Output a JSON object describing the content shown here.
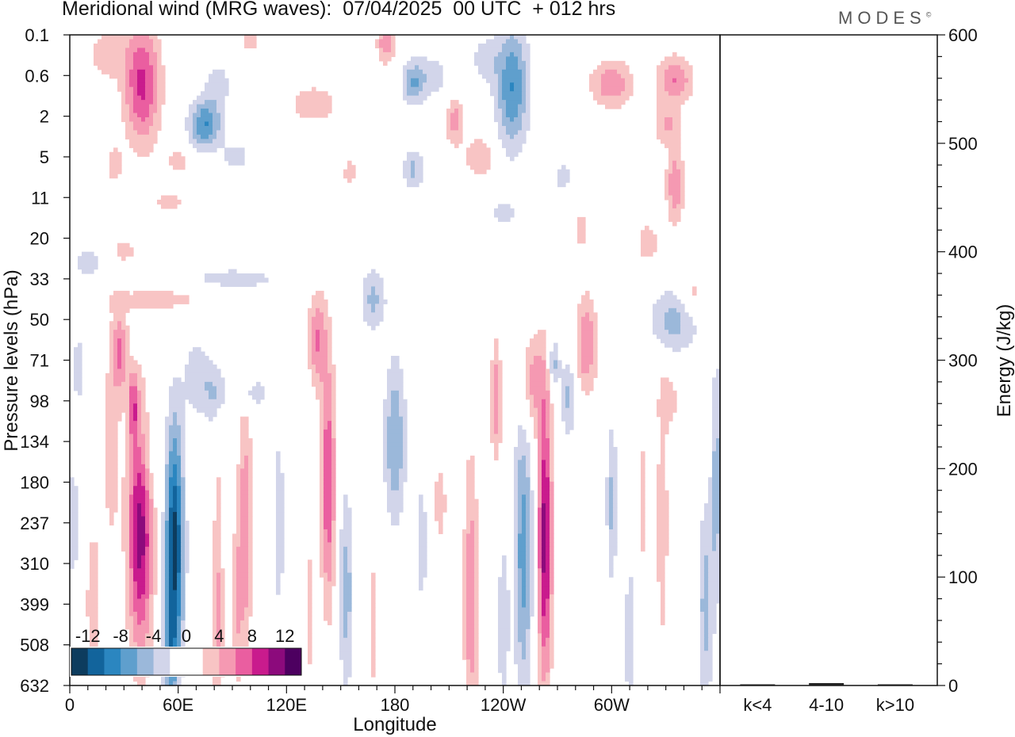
{
  "title": "Meridional wind (MRG waves):  07/04/2025  00 UTC  + 012 hrs",
  "brand": "MODES",
  "brand_mark": "©",
  "chart_data": [
    {
      "type": "heatmap",
      "variable": "Meridional wind (MRG waves)",
      "date": "07/04/2025",
      "time": "00 UTC",
      "forecast": "+ 012 hrs",
      "xlabel": "Longitude",
      "ylabel": "Pressure levels (hPa)",
      "x_ticks": [
        "0",
        "60E",
        "120E",
        "180",
        "120W",
        "60W"
      ],
      "x_tick_values": [
        0,
        60,
        120,
        180,
        240,
        300
      ],
      "xlim": [
        0,
        360
      ],
      "y_ticks": [
        "0.1",
        "0.6",
        "2",
        "5",
        "11",
        "20",
        "33",
        "50",
        "71",
        "98",
        "134",
        "180",
        "237",
        "310",
        "399",
        "508",
        "632"
      ],
      "colorbar": {
        "labels": [
          "-12",
          "-8",
          "-4",
          "0",
          "4",
          "8",
          "12"
        ],
        "label_values": [
          -12,
          -8,
          -4,
          0,
          4,
          8,
          12
        ],
        "bins": [
          {
            "lo": -14,
            "hi": -12,
            "color": "#0d3c5e"
          },
          {
            "lo": -12,
            "hi": -10,
            "color": "#12649c"
          },
          {
            "lo": -10,
            "hi": -8,
            "color": "#2b86c0"
          },
          {
            "lo": -8,
            "hi": -6,
            "color": "#5f9fcd"
          },
          {
            "lo": -6,
            "hi": -4,
            "color": "#9bb8da"
          },
          {
            "lo": -4,
            "hi": -2,
            "color": "#d2d5ea"
          },
          {
            "lo": -2,
            "hi": 0,
            "color": "#ffffff"
          },
          {
            "lo": 0,
            "hi": 2,
            "color": "#ffffff"
          },
          {
            "lo": 2,
            "hi": 4,
            "color": "#f8c4c4"
          },
          {
            "lo": 4,
            "hi": 6,
            "color": "#f599b2"
          },
          {
            "lo": 6,
            "hi": 8,
            "color": "#ea5ea0"
          },
          {
            "lo": 8,
            "hi": 10,
            "color": "#c91b8d"
          },
          {
            "lo": 10,
            "hi": 12,
            "color": "#8c0a7c"
          },
          {
            "lo": 12,
            "hi": 14,
            "color": "#4d0060"
          }
        ]
      },
      "features": [
        {
          "lon": 39,
          "lev": 12.2,
          "v": 11,
          "lw": 7,
          "lh": 3.0
        },
        {
          "lon": 58,
          "lev": 12.6,
          "v": -13,
          "lw": 5,
          "lh": 3.0
        },
        {
          "lon": 55,
          "lev": 15.2,
          "v": -5,
          "lw": 4,
          "lh": 1.2
        },
        {
          "lon": 13,
          "lev": 14,
          "v": 3,
          "lw": 5,
          "lh": 2.5
        },
        {
          "lon": 5,
          "lev": 8.2,
          "v": -4,
          "lw": 3,
          "lh": 0.8
        },
        {
          "lon": 2,
          "lev": 12,
          "v": -3,
          "lw": 3,
          "lh": 2
        },
        {
          "lon": 23,
          "lev": 10,
          "v": 3,
          "lw": 5,
          "lh": 3
        },
        {
          "lon": 28,
          "lev": 7.8,
          "v": 6,
          "lw": 4,
          "lh": 1
        },
        {
          "lon": 35,
          "lev": 9.1,
          "v": 6,
          "lw": 3,
          "lh": 0.8
        },
        {
          "lon": 44,
          "lev": 10.3,
          "v": -2.5,
          "lw": 6,
          "lh": 1.2
        },
        {
          "lon": 80,
          "lev": 8.8,
          "v": -4,
          "lw": 6,
          "lh": 0.8
        },
        {
          "lon": 70,
          "lev": 8.4,
          "v": -3.5,
          "lw": 7,
          "lh": 1
        },
        {
          "lon": 82,
          "lev": 14.5,
          "v": 4.5,
          "lw": 3,
          "lh": 4
        },
        {
          "lon": 97,
          "lev": 12.2,
          "v": 6,
          "lw": 4,
          "lh": 3
        },
        {
          "lon": 92,
          "lev": 14.2,
          "v": 3.5,
          "lw": 3,
          "lh": 2
        },
        {
          "lon": 103,
          "lev": 14,
          "v": -2.5,
          "lw": 2,
          "lh": 3
        },
        {
          "lon": 116,
          "lev": 12,
          "v": -3,
          "lw": 3,
          "lh": 3
        },
        {
          "lon": 133,
          "lev": 14.2,
          "v": 3,
          "lw": 3,
          "lh": 2
        },
        {
          "lon": 143,
          "lev": 11,
          "v": 8,
          "lw": 4,
          "lh": 3
        },
        {
          "lon": 137,
          "lev": 7.5,
          "v": 6,
          "lw": 5,
          "lh": 1.2
        },
        {
          "lon": 153,
          "lev": 13.7,
          "v": -5,
          "lw": 4,
          "lh": 2.5
        },
        {
          "lon": 168,
          "lev": 14.5,
          "v": 3,
          "lw": 3,
          "lh": 2
        },
        {
          "lon": 180,
          "lev": 10,
          "v": -6,
          "lw": 6,
          "lh": 2
        },
        {
          "lon": 168,
          "lev": 6.5,
          "v": -4.5,
          "lw": 7,
          "lh": 0.8
        },
        {
          "lon": 205,
          "lev": 11.5,
          "v": 3,
          "lw": 4,
          "lh": 1.2
        },
        {
          "lon": 195,
          "lev": 12.5,
          "v": -3,
          "lw": 3,
          "lh": 2
        },
        {
          "lon": 222,
          "lev": 13.8,
          "v": 5.5,
          "lw": 4,
          "lh": 3.5
        },
        {
          "lon": 236,
          "lev": 9,
          "v": 5.5,
          "lw": 3,
          "lh": 1.5
        },
        {
          "lon": 251,
          "lev": 12.7,
          "v": -7,
          "lw": 5,
          "lh": 3.5
        },
        {
          "lon": 240,
          "lev": 14.5,
          "v": -4,
          "lw": 3,
          "lh": 2
        },
        {
          "lon": 263,
          "lev": 12.4,
          "v": 11,
          "lw": 4,
          "lh": 3.5
        },
        {
          "lon": 256,
          "lev": 8.5,
          "v": 5,
          "lw": 7,
          "lh": 1.2
        },
        {
          "lon": 276,
          "lev": 8.9,
          "v": -4.5,
          "lw": 4,
          "lh": 1
        },
        {
          "lon": 268,
          "lev": 8.1,
          "v": -5,
          "lw": 3,
          "lh": 0.6
        },
        {
          "lon": 286,
          "lev": 7.6,
          "v": 6,
          "lw": 6,
          "lh": 1.2
        },
        {
          "lon": 300,
          "lev": 11.5,
          "v": -4.5,
          "lw": 3,
          "lh": 2
        },
        {
          "lon": 310,
          "lev": 14.8,
          "v": -3.5,
          "lw": 3,
          "lh": 2
        },
        {
          "lon": 318,
          "lev": 11.5,
          "v": 3,
          "lw": 2,
          "lh": 2.5
        },
        {
          "lon": 328,
          "lev": 12,
          "v": 4,
          "lw": 3,
          "lh": 3
        },
        {
          "lon": 352,
          "lev": 14,
          "v": -5,
          "lw": 4,
          "lh": 2.5
        },
        {
          "lon": 358,
          "lev": 11,
          "v": -5,
          "lw": 3,
          "lh": 3
        },
        {
          "lon": 335,
          "lev": 7,
          "v": -5,
          "lw": 14,
          "lh": 0.8
        },
        {
          "lon": 345,
          "lev": 6.4,
          "v": 3.5,
          "lw": 8,
          "lh": 0.6
        },
        {
          "lon": 332,
          "lev": 9.0,
          "v": 3,
          "lw": 6,
          "lh": 0.7
        },
        {
          "lon": 40,
          "lev": 1.2,
          "v": 8.5,
          "lw": 10,
          "lh": 1.5
        },
        {
          "lon": 75,
          "lev": 2.2,
          "v": -8,
          "lw": 9,
          "lh": 0.6
        },
        {
          "lon": 82,
          "lev": 1.2,
          "v": -3,
          "lw": 8,
          "lh": 0.6
        },
        {
          "lon": 20,
          "lev": 0.5,
          "v": 3.5,
          "lw": 10,
          "lh": 0.6
        },
        {
          "lon": 25,
          "lev": 3.2,
          "v": 3,
          "lw": 5,
          "lh": 0.5
        },
        {
          "lon": 60,
          "lev": 3.1,
          "v": 3,
          "lw": 6,
          "lh": 0.4
        },
        {
          "lon": 135,
          "lev": 1.7,
          "v": 3.5,
          "lw": 14,
          "lh": 0.5
        },
        {
          "lon": 92,
          "lev": 3.0,
          "v": -3,
          "lw": 8,
          "lh": 0.4
        },
        {
          "lon": 175,
          "lev": 0.2,
          "v": 5.5,
          "lw": 5,
          "lh": 0.5
        },
        {
          "lon": 100,
          "lev": 0.1,
          "v": 3,
          "lw": 6,
          "lh": 0.4
        },
        {
          "lon": 190,
          "lev": 1.2,
          "v": -5,
          "lw": 6,
          "lh": 0.5
        },
        {
          "lon": 200,
          "lev": 1.0,
          "v": -3,
          "lw": 12,
          "lh": 0.6
        },
        {
          "lon": 213,
          "lev": 2.1,
          "v": 5,
          "lw": 5,
          "lh": 0.6
        },
        {
          "lon": 227,
          "lev": 3.0,
          "v": 4,
          "lw": 9,
          "lh": 0.5
        },
        {
          "lon": 190,
          "lev": 3.3,
          "v": -4.5,
          "lw": 6,
          "lh": 0.5
        },
        {
          "lon": 245,
          "lev": 1.3,
          "v": -8,
          "lw": 9,
          "lh": 1.5
        },
        {
          "lon": 230,
          "lev": 0.6,
          "v": -3,
          "lw": 8,
          "lh": 0.6
        },
        {
          "lon": 300,
          "lev": 1.2,
          "v": 5.5,
          "lw": 12,
          "lh": 0.6
        },
        {
          "lon": 335,
          "lev": 1.1,
          "v": 6,
          "lw": 10,
          "lh": 0.6
        },
        {
          "lon": 330,
          "lev": 2.2,
          "v": 4,
          "lw": 7,
          "lh": 0.5
        },
        {
          "lon": 335,
          "lev": 3.7,
          "v": 5.5,
          "lw": 5,
          "lh": 1
        },
        {
          "lon": 320,
          "lev": 5.1,
          "v": 3.5,
          "lw": 6,
          "lh": 0.5
        },
        {
          "lon": 273,
          "lev": 3.5,
          "v": -3,
          "lw": 5,
          "lh": 0.4
        },
        {
          "lon": 155,
          "lev": 3.4,
          "v": 3,
          "lw": 4,
          "lh": 0.4
        },
        {
          "lon": 283,
          "lev": 4.8,
          "v": 3,
          "lw": 4,
          "lh": 0.5
        },
        {
          "lon": 30,
          "lev": 5.3,
          "v": 3,
          "lw": 7,
          "lh": 0.3
        },
        {
          "lon": 10,
          "lev": 5.6,
          "v": -3,
          "lw": 10,
          "lh": 0.4
        },
        {
          "lon": 50,
          "lev": 6.5,
          "v": 3,
          "lw": 28,
          "lh": 0.35
        },
        {
          "lon": 90,
          "lev": 6.0,
          "v": -3,
          "lw": 30,
          "lh": 0.3
        },
        {
          "lon": 240,
          "lev": 4.4,
          "v": -3,
          "lw": 8,
          "lh": 0.3
        },
        {
          "lon": 55,
          "lev": 4.1,
          "v": 3,
          "lw": 10,
          "lh": 0.25
        },
        {
          "lon": 100,
          "lev": 8.8,
          "v": -3,
          "lw": 12,
          "lh": 0.4
        }
      ]
    },
    {
      "type": "bar",
      "categories": [
        "k<4",
        "4-10",
        "k>10"
      ],
      "values": [
        0.5,
        2.2,
        0.4
      ],
      "ylabel": "Energy (J/kg)",
      "ylim": [
        0,
        600
      ],
      "y_ticks": [
        "0",
        "100",
        "200",
        "300",
        "400",
        "500",
        "600"
      ],
      "y_tick_values": [
        0,
        100,
        200,
        300,
        400,
        500,
        600
      ]
    }
  ]
}
